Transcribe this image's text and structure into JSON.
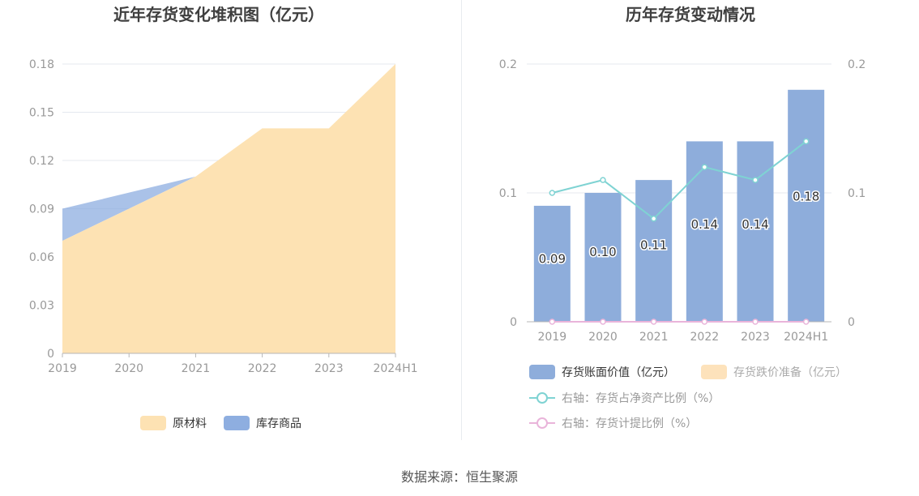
{
  "footer": {
    "source_label": "数据来源：恒生聚源"
  },
  "chart_data": [
    {
      "type": "area",
      "stacked": true,
      "title": "近年存货变化堆积图（亿元）",
      "categories": [
        "2019",
        "2020",
        "2021",
        "2022",
        "2023",
        "2024H1"
      ],
      "series": [
        {
          "name": "原材料",
          "values": [
            0.07,
            0.09,
            0.11,
            0.14,
            0.14,
            0.18
          ],
          "color": "#fde2b3"
        },
        {
          "name": "库存商品",
          "values": [
            0.02,
            0.01,
            0.0,
            0.0,
            0.0,
            0.0
          ],
          "color": "#8eaee0"
        }
      ],
      "ylim": [
        0,
        0.18
      ],
      "yticks": [
        0,
        0.03,
        0.06,
        0.09,
        0.12,
        0.15,
        0.18
      ],
      "ytick_labels": [
        "0",
        "0.03",
        "0.06",
        "0.09",
        "0.12",
        "0.15",
        "0.18"
      ],
      "grid": true,
      "legend_position": "bottom"
    },
    {
      "type": "bar",
      "title": "历年存货变动情况",
      "categories": [
        "2019",
        "2020",
        "2021",
        "2022",
        "2023",
        "2024H1"
      ],
      "series": [
        {
          "name": "存货账面价值（亿元）",
          "values": [
            0.09,
            0.1,
            0.11,
            0.14,
            0.14,
            0.18
          ],
          "labels": [
            "0.09",
            "0.10",
            "0.11",
            "0.14",
            "0.14",
            "0.18"
          ],
          "color": "#8eaddb",
          "kind": "bar",
          "axis": "left"
        },
        {
          "name": "存货跌价准备（亿元）",
          "values": [
            0,
            0,
            0,
            0,
            0,
            0
          ],
          "color": "#fde2bb",
          "kind": "bar",
          "axis": "left"
        },
        {
          "name": "右轴：存货占净资产比例（%）",
          "values": [
            0.1,
            0.11,
            0.08,
            0.12,
            0.11,
            0.14
          ],
          "color": "#7fd3d3",
          "kind": "line",
          "axis": "right"
        },
        {
          "name": "右轴：存货计提比例（%）",
          "values": [
            0,
            0,
            0,
            0,
            0,
            0
          ],
          "color": "#e9b4da",
          "kind": "line",
          "axis": "right"
        }
      ],
      "ylim": [
        0,
        0.2
      ],
      "yticks": [
        0,
        0.1,
        0.2
      ],
      "ytick_labels": [
        "0",
        "0.1",
        "0.2"
      ],
      "y2lim": [
        0,
        0.2
      ],
      "y2ticks": [
        0,
        0.1,
        0.2
      ],
      "y2tick_labels": [
        "0",
        "0.1",
        "0.2"
      ],
      "grid": true,
      "legend_position": "bottom"
    }
  ]
}
